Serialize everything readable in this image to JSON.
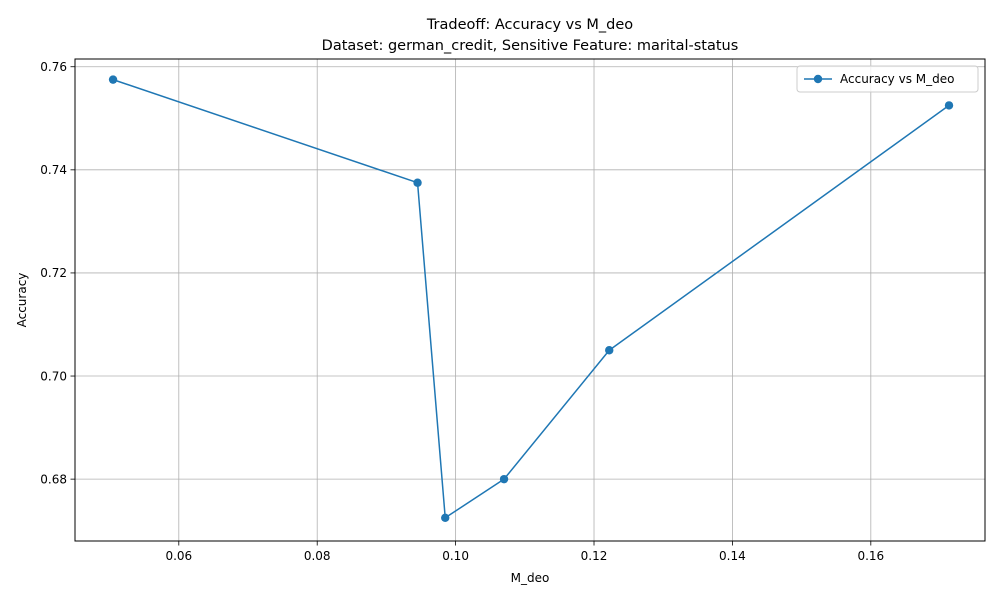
{
  "chart_data": {
    "type": "line",
    "title": "Tradeoff: Accuracy vs M_deo",
    "subtitle": "Dataset: german_credit, Sensitive Feature: marital-status",
    "xlabel": "M_deo",
    "ylabel": "Accuracy",
    "xlim": [
      0.045,
      0.1765
    ],
    "ylim": [
      0.668,
      0.7615
    ],
    "x_ticks": [
      0.06,
      0.08,
      0.1,
      0.12,
      0.14,
      0.16
    ],
    "x_tick_labels": [
      "0.06",
      "0.08",
      "0.10",
      "0.12",
      "0.14",
      "0.16"
    ],
    "y_ticks": [
      0.68,
      0.7,
      0.72,
      0.74,
      0.76
    ],
    "y_tick_labels": [
      "0.68",
      "0.70",
      "0.72",
      "0.74",
      "0.76"
    ],
    "grid": true,
    "legend_position": "top-right",
    "series": [
      {
        "name": "Accuracy vs M_deo",
        "color": "#1f77b4",
        "marker": "circle",
        "x": [
          0.0505,
          0.0945,
          0.0985,
          0.107,
          0.1222,
          0.1713
        ],
        "y": [
          0.7575,
          0.7375,
          0.6725,
          0.68,
          0.705,
          0.7525
        ]
      }
    ]
  }
}
